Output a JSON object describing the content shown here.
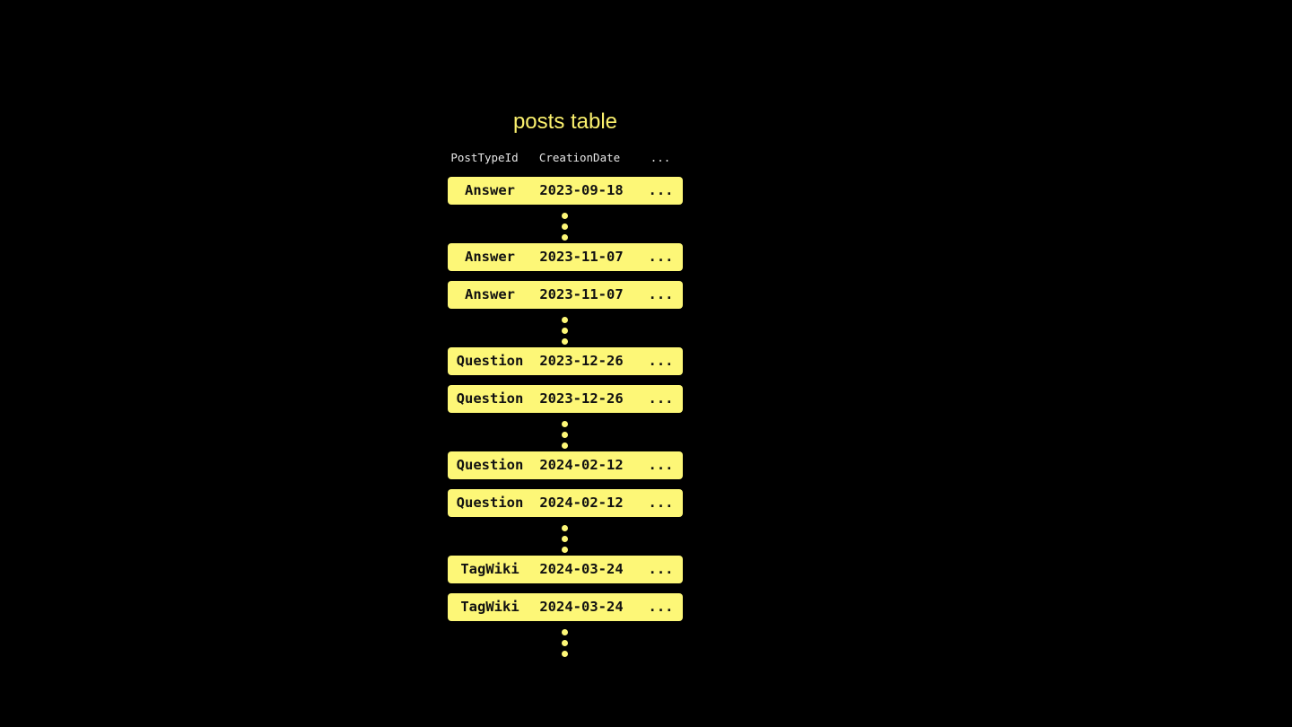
{
  "title": "posts table",
  "columns": [
    "PostTypeId",
    "CreationDate",
    "..."
  ],
  "rows": [
    [
      "Answer",
      "2023-09-18",
      "..."
    ],
    [
      "Answer",
      "2023-11-07",
      "..."
    ],
    [
      "Answer",
      "2023-11-07",
      "..."
    ],
    [
      "Question",
      "2023-12-26",
      "..."
    ],
    [
      "Question",
      "2023-12-26",
      "..."
    ],
    [
      "Question",
      "2024-02-12",
      "..."
    ],
    [
      "Question",
      "2024-02-12",
      "..."
    ],
    [
      "TagWiki",
      "2024-03-24",
      "..."
    ],
    [
      "TagWiki",
      "2024-03-24",
      "..."
    ]
  ],
  "colors": {
    "accent": "#fdf777",
    "background": "#000000"
  }
}
